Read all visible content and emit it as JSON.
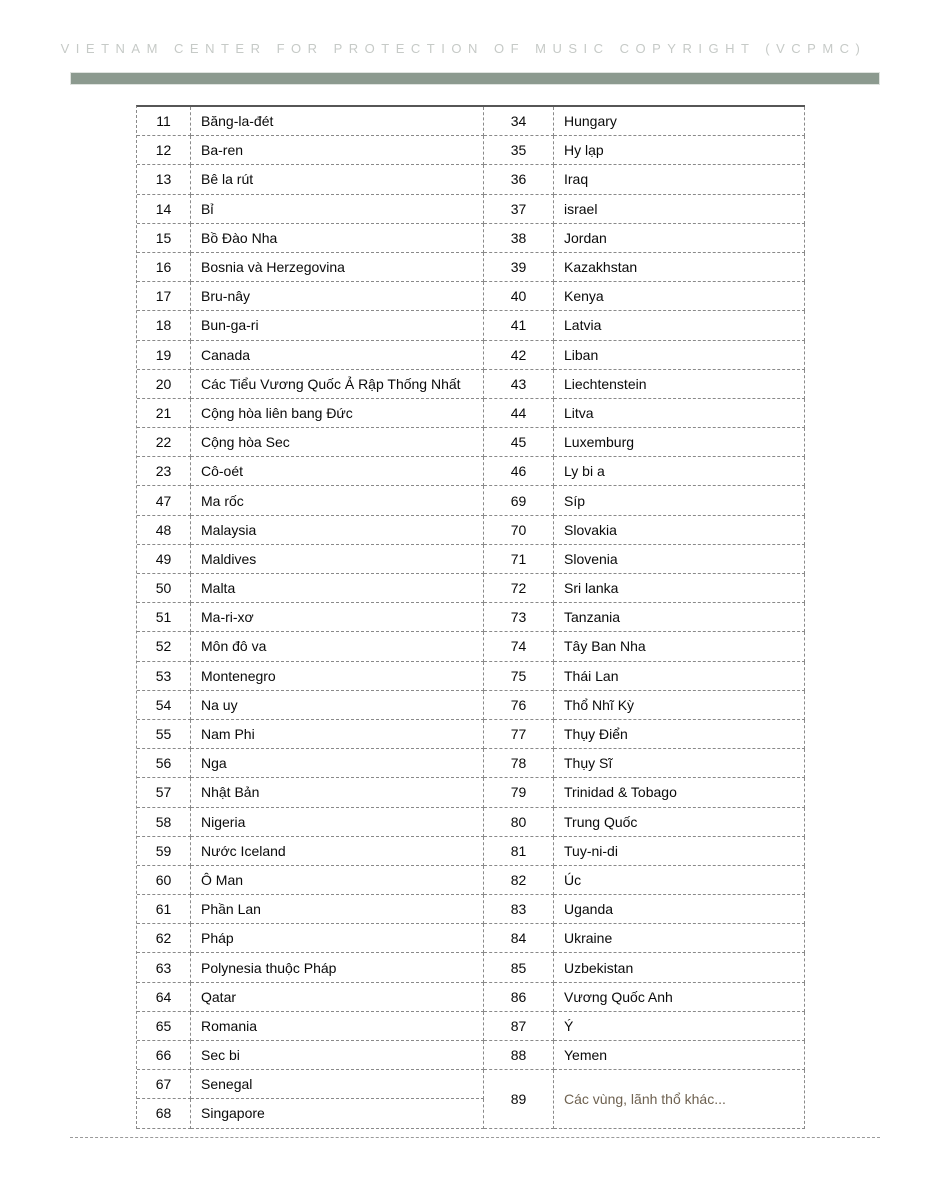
{
  "header": {
    "title": "VIETNAM CENTER FOR PROTECTION OF MUSIC COPYRIGHT (VCPMC)",
    "bar_color": "#8c9a8f",
    "title_color": "#c6cac7"
  },
  "table": {
    "text_color": "#0a0a0a",
    "muted_color": "#6e6150",
    "border_color": "#8a8a8a",
    "left_rows": [
      {
        "num": "11",
        "name": "Băng-la-đét"
      },
      {
        "num": "12",
        "name": "Ba-ren"
      },
      {
        "num": "13",
        "name": "Bê la rút"
      },
      {
        "num": "14",
        "name": "Bỉ"
      },
      {
        "num": "15",
        "name": "Bồ Đào Nha"
      },
      {
        "num": "16",
        "name": "Bosnia và Herzegovina"
      },
      {
        "num": "17",
        "name": "Bru-nây"
      },
      {
        "num": "18",
        "name": "Bun-ga-ri"
      },
      {
        "num": "19",
        "name": "Canada"
      },
      {
        "num": "20",
        "name": "Các Tiểu Vương Quốc Ả Rập Thống Nhất"
      },
      {
        "num": "21",
        "name": "Cộng hòa liên bang Đức"
      },
      {
        "num": "22",
        "name": "Cộng hòa Sec"
      },
      {
        "num": "23",
        "name": "Cô-oét"
      },
      {
        "num": "47",
        "name": "Ma rốc"
      },
      {
        "num": "48",
        "name": "Malaysia"
      },
      {
        "num": "49",
        "name": "Maldives"
      },
      {
        "num": "50",
        "name": "Malta"
      },
      {
        "num": "51",
        "name": "Ma-ri-xơ"
      },
      {
        "num": "52",
        "name": "Môn đô va"
      },
      {
        "num": "53",
        "name": "Montenegro"
      },
      {
        "num": "54",
        "name": "Na uy"
      },
      {
        "num": "55",
        "name": "Nam Phi"
      },
      {
        "num": "56",
        "name": "Nga"
      },
      {
        "num": "57",
        "name": "Nhật Bản"
      },
      {
        "num": "58",
        "name": "Nigeria"
      },
      {
        "num": "59",
        "name": "Nước Iceland"
      },
      {
        "num": "60",
        "name": "Ô Man"
      },
      {
        "num": "61",
        "name": "Phần Lan"
      },
      {
        "num": "62",
        "name": "Pháp"
      },
      {
        "num": "63",
        "name": "Polynesia thuộc Pháp"
      },
      {
        "num": "64",
        "name": "Qatar"
      },
      {
        "num": "65",
        "name": "Romania"
      },
      {
        "num": "66",
        "name": "Sec bi"
      },
      {
        "num": "67",
        "name": "Senegal"
      },
      {
        "num": "68",
        "name": "Singapore"
      }
    ],
    "right_rows": [
      {
        "num": "34",
        "name": "Hungary"
      },
      {
        "num": "35",
        "name": "Hy lạp"
      },
      {
        "num": "36",
        "name": "Iraq"
      },
      {
        "num": "37",
        "name": "israel"
      },
      {
        "num": "38",
        "name": "Jordan"
      },
      {
        "num": "39",
        "name": "Kazakhstan"
      },
      {
        "num": "40",
        "name": "Kenya"
      },
      {
        "num": "41",
        "name": "Latvia"
      },
      {
        "num": "42",
        "name": "Liban"
      },
      {
        "num": "43",
        "name": "Liechtenstein"
      },
      {
        "num": "44",
        "name": "Litva"
      },
      {
        "num": "45",
        "name": "Luxemburg"
      },
      {
        "num": "46",
        "name": "Ly bi a"
      },
      {
        "num": "69",
        "name": "Síp"
      },
      {
        "num": "70",
        "name": "Slovakia"
      },
      {
        "num": "71",
        "name": "Slovenia"
      },
      {
        "num": "72",
        "name": "Sri lanka"
      },
      {
        "num": "73",
        "name": "Tanzania"
      },
      {
        "num": "74",
        "name": "Tây Ban Nha"
      },
      {
        "num": "75",
        "name": "Thái Lan"
      },
      {
        "num": "76",
        "name": "Thổ Nhĩ Kỳ"
      },
      {
        "num": "77",
        "name": "Thụy Điển"
      },
      {
        "num": "78",
        "name": "Thụy Sĩ"
      },
      {
        "num": "79",
        "name": "Trinidad & Tobago"
      },
      {
        "num": "80",
        "name": "Trung Quốc"
      },
      {
        "num": "81",
        "name": "Tuy-ni-di"
      },
      {
        "num": "82",
        "name": "Úc"
      },
      {
        "num": "83",
        "name": "Uganda"
      },
      {
        "num": "84",
        "name": "Ukraine"
      },
      {
        "num": "85",
        "name": "Uzbekistan"
      },
      {
        "num": "86",
        "name": "Vương Quốc Anh"
      },
      {
        "num": "87",
        "name": "Ý"
      },
      {
        "num": "88",
        "name": "Yemen"
      },
      {
        "num": "89",
        "name": "Các vùng, lãnh thổ khác...",
        "muted": true,
        "row_span": 2
      }
    ]
  }
}
